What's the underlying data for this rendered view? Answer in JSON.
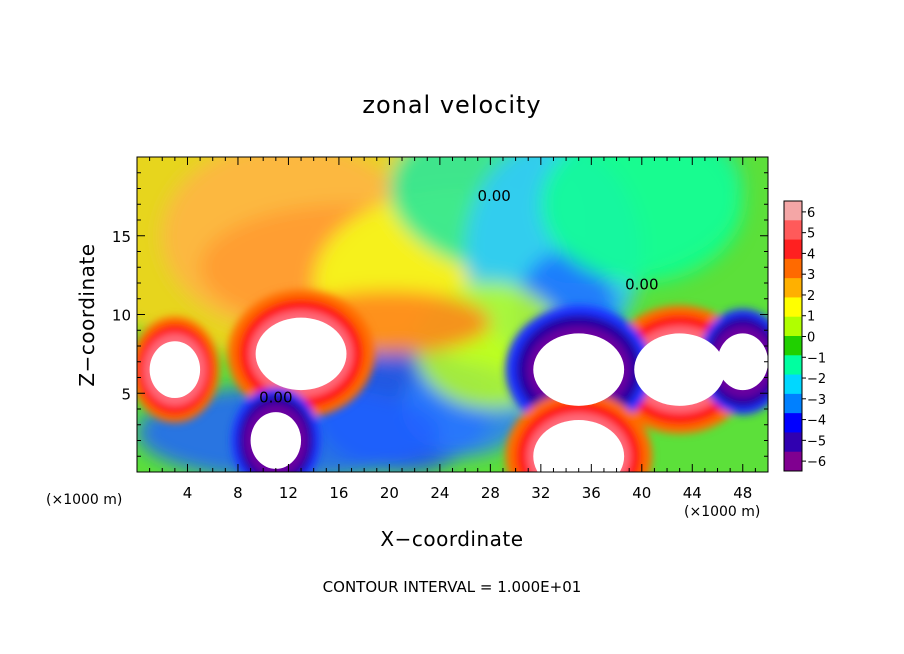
{
  "chart_data": {
    "type": "heatmap",
    "title": "zonal velocity",
    "xlabel": "X−coordinate",
    "ylabel": "Z−coordinate",
    "x_unit": "(×1000 m)",
    "y_unit": "(×1000 m)",
    "xlim": [
      0,
      50
    ],
    "ylim": [
      0,
      20
    ],
    "x_ticks": [
      4,
      8,
      12,
      16,
      20,
      24,
      28,
      32,
      36,
      40,
      44,
      48
    ],
    "y_ticks": [
      5,
      10,
      15
    ],
    "colorbar": {
      "ticks": [
        "6",
        "5",
        "4",
        "3",
        "2",
        "1",
        "0",
        "−1",
        "−2",
        "−3",
        "−4",
        "−5",
        "−6"
      ],
      "range": [
        -6,
        6
      ],
      "colors": [
        "#f4a6a6",
        "#ff5a5a",
        "#ff2020",
        "#ff6a00",
        "#ffb000",
        "#ffff00",
        "#b0ff00",
        "#20d000",
        "#00ffa0",
        "#00d8ff",
        "#0080ff",
        "#0000ff",
        "#3000b0",
        "#800090"
      ]
    },
    "contour_labels": [
      {
        "text": "0.00",
        "x": 11.0,
        "z": 4.4
      },
      {
        "text": "0.00",
        "x": 28.3,
        "z": 17.2
      },
      {
        "text": "0.00",
        "x": 40.0,
        "z": 11.6
      }
    ],
    "features": [
      {
        "kind": "max",
        "x": 13,
        "z": 7.5,
        "value": 6
      },
      {
        "kind": "max",
        "x": 3,
        "z": 6.5,
        "value": 6
      },
      {
        "kind": "max",
        "x": 43,
        "z": 6.5,
        "value": 6
      },
      {
        "kind": "min",
        "x": 35,
        "z": 6.5,
        "value": -6
      },
      {
        "kind": "min",
        "x": 48,
        "z": 7,
        "value": -6
      },
      {
        "kind": "min",
        "x": 11,
        "z": 2,
        "value": -6
      },
      {
        "kind": "max",
        "x": 35,
        "z": 1,
        "value": 6
      }
    ],
    "footer": "CONTOUR INTERVAL = 1.000E+01"
  }
}
